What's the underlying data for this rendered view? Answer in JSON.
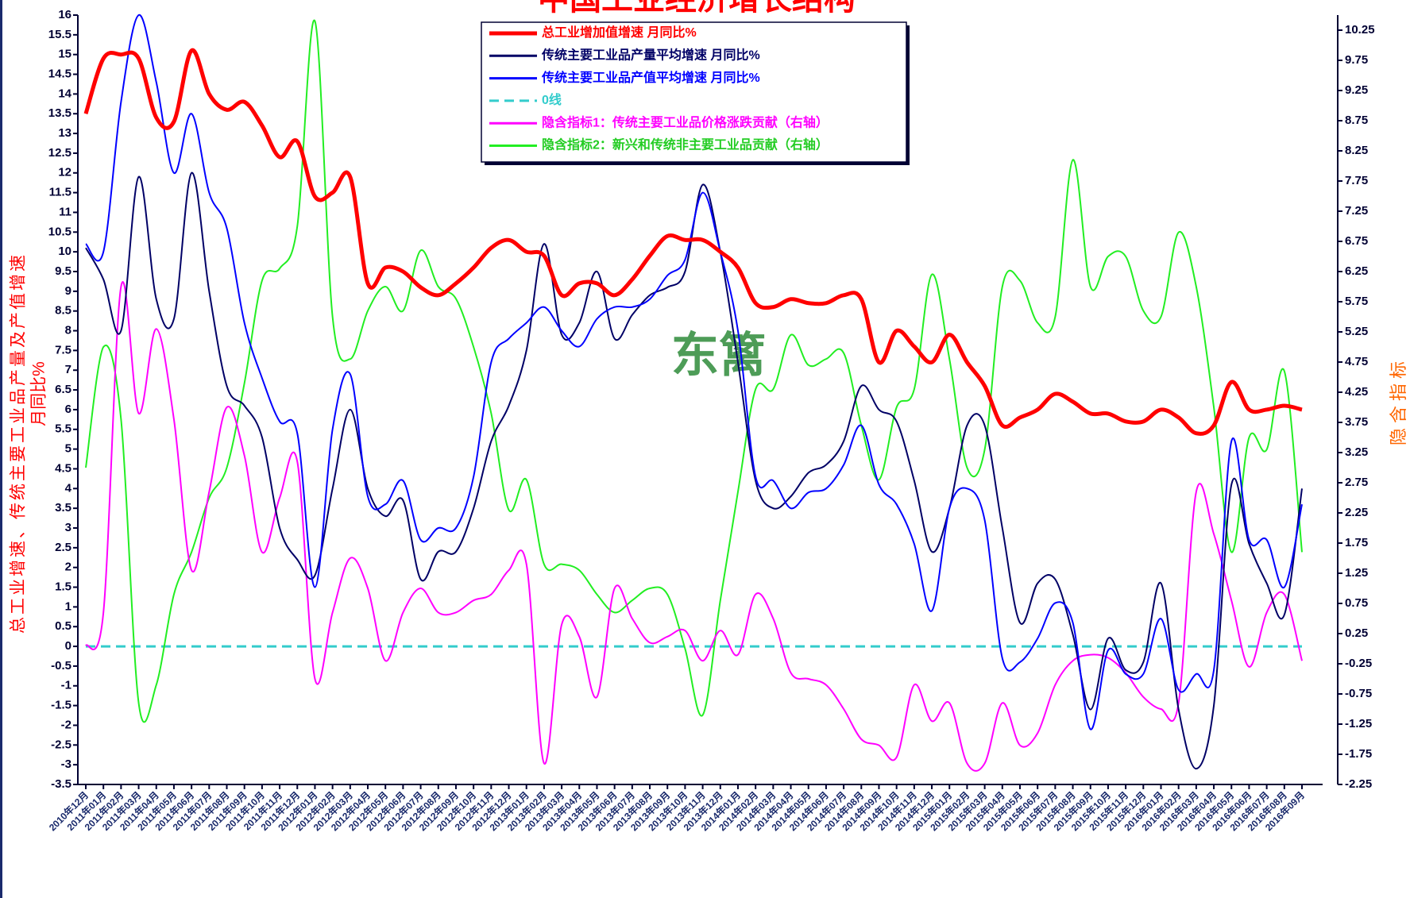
{
  "chart_data": {
    "type": "line",
    "title": "中国工业经济增长结构",
    "ylabel": [
      "总工业增速、传统主要工业品产量及产值增速",
      "月同比%"
    ],
    "y2label": "隐含指标",
    "watermark": "东篱",
    "categories": [
      "2010年12月",
      "2011年01月",
      "2011年02月",
      "2011年03月",
      "2011年04月",
      "2011年05月",
      "2011年06月",
      "2011年07月",
      "2011年08月",
      "2011年09月",
      "2011年10月",
      "2011年11月",
      "2011年12月",
      "2012年01月",
      "2012年02月",
      "2012年03月",
      "2012年04月",
      "2012年05月",
      "2012年06月",
      "2012年07月",
      "2012年08月",
      "2012年09月",
      "2012年10月",
      "2012年11月",
      "2012年12月",
      "2013年01月",
      "2013年02月",
      "2013年03月",
      "2013年04月",
      "2013年05月",
      "2013年06月",
      "2013年07月",
      "2013年08月",
      "2013年09月",
      "2013年10月",
      "2013年11月",
      "2013年12月",
      "2014年01月",
      "2014年02月",
      "2014年03月",
      "2014年04月",
      "2014年05月",
      "2014年06月",
      "2014年07月",
      "2014年08月",
      "2014年09月",
      "2014年10月",
      "2014年11月",
      "2014年12月",
      "2015年01月",
      "2015年02月",
      "2015年03月",
      "2015年04月",
      "2015年05月",
      "2015年06月",
      "2015年07月",
      "2015年08月",
      "2015年09月",
      "2015年10月",
      "2015年11月",
      "2015年12月",
      "2016年01月",
      "2016年02月",
      "2016年03月",
      "2016年04月",
      "2016年05月",
      "2016年06月",
      "2016年07月",
      "2016年08月",
      "2016年09月"
    ],
    "series": [
      {
        "name": "总工业增加值增速 月同比%",
        "color": "#ff0000",
        "width": 5,
        "values": [
          13.5,
          14.9,
          15.0,
          14.9,
          13.4,
          13.3,
          15.1,
          14.0,
          13.6,
          13.8,
          13.2,
          12.4,
          12.8,
          11.4,
          11.5,
          11.9,
          9.2,
          9.6,
          9.5,
          9.1,
          8.9,
          9.2,
          9.6,
          10.1,
          10.3,
          10.0,
          9.9,
          8.9,
          9.2,
          9.2,
          8.9,
          9.3,
          9.9,
          10.4,
          10.3,
          10.3,
          10.0,
          9.6,
          8.7,
          8.6,
          8.8,
          8.7,
          8.7,
          8.9,
          8.8,
          7.2,
          8.0,
          7.6,
          7.2,
          7.9,
          7.2,
          6.6,
          5.6,
          5.8,
          6.0,
          6.4,
          6.2,
          5.9,
          5.9,
          5.7,
          5.7,
          6.0,
          5.8,
          5.4,
          5.6,
          6.7,
          6.0,
          6.0,
          6.1,
          6.0
        ]
      },
      {
        "name": "传统主要工业品产量平均增速 月同比%",
        "color": "#000066",
        "width": 2,
        "values": [
          10.1,
          9.3,
          8.0,
          11.9,
          8.8,
          8.3,
          12.0,
          9.0,
          6.6,
          6.1,
          5.3,
          3.0,
          2.2,
          1.8,
          4.0,
          6.0,
          4.0,
          3.3,
          3.7,
          1.7,
          2.4,
          2.4,
          3.5,
          5.2,
          6.1,
          7.5,
          10.2,
          7.9,
          8.2,
          9.5,
          7.8,
          8.4,
          8.9,
          9.1,
          9.5,
          11.7,
          10.0,
          7.2,
          4.2,
          3.5,
          3.8,
          4.4,
          4.6,
          5.2,
          6.6,
          6.0,
          5.7,
          4.2,
          2.4,
          3.5,
          5.6,
          5.6,
          3.0,
          0.6,
          1.6,
          1.7,
          0.3,
          -1.6,
          0.2,
          -0.6,
          -0.4,
          1.6,
          -1.6,
          -3.1,
          -1.5,
          4.1,
          2.6,
          1.6,
          0.8,
          4.0
        ]
      },
      {
        "name": "传统主要工业品产值平均增速 月同比%",
        "color": "#0000ff",
        "width": 2,
        "values": [
          10.2,
          10.0,
          13.8,
          16.0,
          14.3,
          12.0,
          13.5,
          11.5,
          10.6,
          8.2,
          6.8,
          5.7,
          5.4,
          1.5,
          5.5,
          6.9,
          3.8,
          3.6,
          4.2,
          2.7,
          3.0,
          3.0,
          4.3,
          7.2,
          7.8,
          8.2,
          8.6,
          8.0,
          7.6,
          8.3,
          8.6,
          8.6,
          8.8,
          9.4,
          9.8,
          11.5,
          10.0,
          8.0,
          4.3,
          4.2,
          3.5,
          3.9,
          4.0,
          4.6,
          5.6,
          4.1,
          3.6,
          2.6,
          0.9,
          3.5,
          4.0,
          3.2,
          -0.3,
          -0.4,
          0.2,
          1.1,
          0.6,
          -2.1,
          -0.1,
          -0.7,
          -0.7,
          0.7,
          -1.1,
          -0.7,
          -0.6,
          5.2,
          2.7,
          2.7,
          1.5,
          3.6
        ]
      },
      {
        "name": "0线",
        "color": "#33cccc",
        "width": 3,
        "dash": true,
        "values": [
          0,
          0,
          0,
          0,
          0,
          0,
          0,
          0,
          0,
          0,
          0,
          0,
          0,
          0,
          0,
          0,
          0,
          0,
          0,
          0,
          0,
          0,
          0,
          0,
          0,
          0,
          0,
          0,
          0,
          0,
          0,
          0,
          0,
          0,
          0,
          0,
          0,
          0,
          0,
          0,
          0,
          0,
          0,
          0,
          0,
          0,
          0,
          0,
          0,
          0,
          0,
          0,
          0,
          0,
          0,
          0,
          0,
          0,
          0,
          0,
          0,
          0,
          0,
          0,
          0,
          0,
          0,
          0,
          0,
          0
        ]
      },
      {
        "name": "隐含指标1：传统主要工业品价格涨跌贡献（右轴）",
        "color": "#ff00ff",
        "width": 2,
        "axis": "y2",
        "values": [
          0.05,
          0.6,
          6.0,
          3.9,
          5.3,
          3.8,
          1.3,
          2.6,
          4.0,
          3.2,
          1.6,
          2.5,
          3.1,
          -0.5,
          0.6,
          1.5,
          1.0,
          -0.2,
          0.6,
          1.0,
          0.6,
          0.6,
          0.8,
          0.9,
          1.3,
          1.4,
          -1.9,
          0.4,
          0.2,
          -0.8,
          1.0,
          0.5,
          0.1,
          0.2,
          0.3,
          -0.2,
          0.3,
          -0.1,
          0.9,
          0.5,
          -0.4,
          -0.5,
          -0.6,
          -1.0,
          -1.5,
          -1.6,
          -1.8,
          -0.6,
          -1.2,
          -0.9,
          -1.9,
          -1.9,
          -0.9,
          -1.6,
          -1.4,
          -0.6,
          -0.2,
          -0.1,
          -0.15,
          -0.4,
          -0.8,
          -1.0,
          -0.9,
          2.6,
          1.9,
          0.8,
          -0.3,
          0.6,
          0.9,
          -0.2
        ]
      },
      {
        "name": "隐含指标2：新兴和传统非主要工业品贡献（右轴）",
        "color": "#22ee22",
        "width": 2,
        "axis": "y2",
        "values": [
          3.0,
          5.0,
          3.8,
          -0.9,
          -0.6,
          0.9,
          1.6,
          2.5,
          3.0,
          4.4,
          6.1,
          6.3,
          7.0,
          10.4,
          5.5,
          4.8,
          5.6,
          6.0,
          5.6,
          6.6,
          6.0,
          5.8,
          5.0,
          3.9,
          2.3,
          2.8,
          1.4,
          1.4,
          1.3,
          0.9,
          0.6,
          0.8,
          1.0,
          0.9,
          0.0,
          -1.1,
          0.8,
          2.6,
          4.3,
          4.3,
          5.2,
          4.7,
          4.8,
          4.9,
          3.7,
          2.8,
          4.0,
          4.3,
          6.2,
          4.8,
          3.0,
          3.3,
          6.0,
          6.1,
          5.4,
          5.5,
          8.1,
          6.0,
          6.5,
          6.5,
          5.6,
          5.5,
          6.9,
          6.0,
          4.0,
          1.6,
          3.5,
          3.3,
          4.6,
          1.6
        ]
      }
    ],
    "ylim": [
      -3.5,
      16
    ],
    "yticks": [
      -3.5,
      -3,
      -2.5,
      -2,
      -1.5,
      -1,
      -0.5,
      0,
      0.5,
      1,
      1.5,
      2,
      2.5,
      3,
      3.5,
      4,
      4.5,
      5,
      5.5,
      6,
      6.5,
      7,
      7.5,
      8,
      8.5,
      9,
      9.5,
      10,
      10.5,
      11,
      11.5,
      12,
      12.5,
      13,
      13.5,
      14,
      14.5,
      15,
      15.5,
      16
    ],
    "y2lim": [
      -2.25,
      10.5
    ],
    "y2ticks": [
      -2.25,
      -1.75,
      -1.25,
      -0.75,
      -0.25,
      0.25,
      0.75,
      1.25,
      1.75,
      2.25,
      2.75,
      3.25,
      3.75,
      4.25,
      4.75,
      5.25,
      5.75,
      6.25,
      6.75,
      7.25,
      7.75,
      8.25,
      8.75,
      9.25,
      9.75,
      10.25
    ],
    "grid": false,
    "legend": "top-center"
  }
}
